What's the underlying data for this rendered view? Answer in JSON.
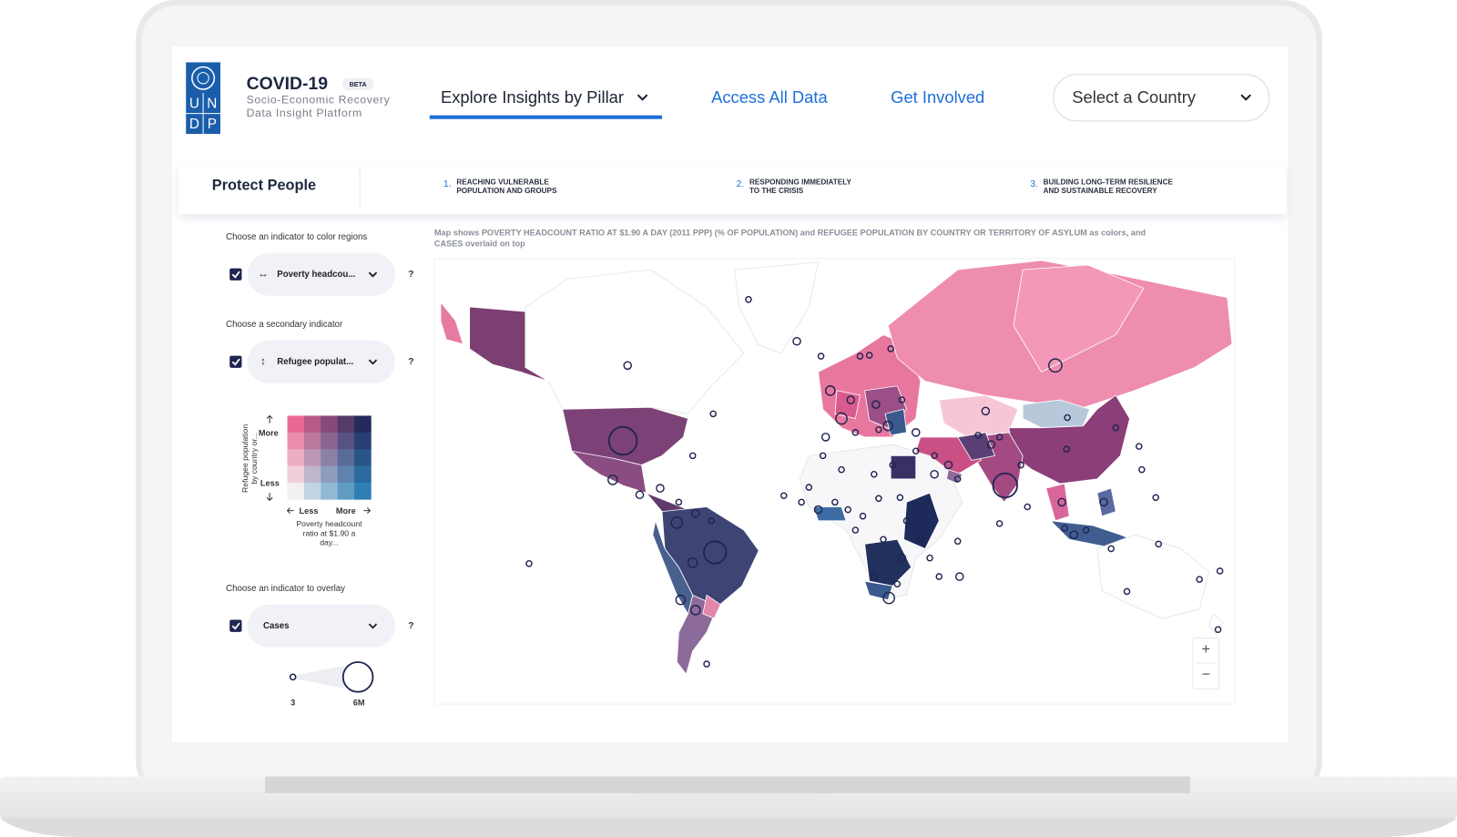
{
  "header": {
    "logo": [
      "U",
      "N",
      "D",
      "P"
    ],
    "title": "COVID-19",
    "badge": "BETA",
    "subtitle": [
      "Socio-Economic Recovery",
      "Data Insight Platform"
    ]
  },
  "nav": {
    "items": [
      "Explore Insights by Pillar",
      "Access All Data",
      "Get Involved"
    ],
    "country_select": "Select a Country"
  },
  "pillars": {
    "active": "Protect People",
    "items": [
      {
        "number": "1.",
        "lines": [
          "REACHING VULNERABLE",
          "POPULATION AND GROUPS"
        ]
      },
      {
        "number": "2.",
        "lines": [
          "RESPONDING IMMEDIATELY",
          "TO THE CRISIS"
        ]
      },
      {
        "number": "3.",
        "lines": [
          "BUILDING LONG-TERM RESILIENCE",
          "AND SUSTAINABLE RECOVERY"
        ]
      }
    ]
  },
  "sidebar": {
    "controls": [
      {
        "prompt": "Choose an indicator to color regions",
        "icon": "↔",
        "selected": "Poverty headcou...",
        "help": "?"
      },
      {
        "prompt": "Choose a secondary indicator",
        "icon": "↕",
        "selected": "Refugee populat...",
        "help": "?"
      },
      {
        "prompt": "Choose an indicator to overlay",
        "selected": "Cases",
        "help": "?"
      }
    ],
    "bivariate_legend": {
      "y_title": [
        "Refugee population",
        "by country or..."
      ],
      "y_high": "More",
      "y_low": "Less",
      "x_low": "Less",
      "x_high": "More",
      "x_title": [
        "Poverty headcount",
        "ratio at $1.90 a",
        "day..."
      ]
    },
    "size_legend": {
      "min": "3",
      "max": "6M"
    }
  },
  "map": {
    "caption": [
      "Map shows ",
      "POVERTY HEADCOUNT RATIO AT $1.90 A DAY (2011 PPP) (% OF POPULATION)",
      " and ",
      "REFUGEE POPULATION BY COUNTRY OR TERRITORY OF ASYLUM",
      " as colors, and",
      "CASES",
      " overlaid on top"
    ],
    "zoom_in": "+",
    "zoom_out": "−"
  }
}
